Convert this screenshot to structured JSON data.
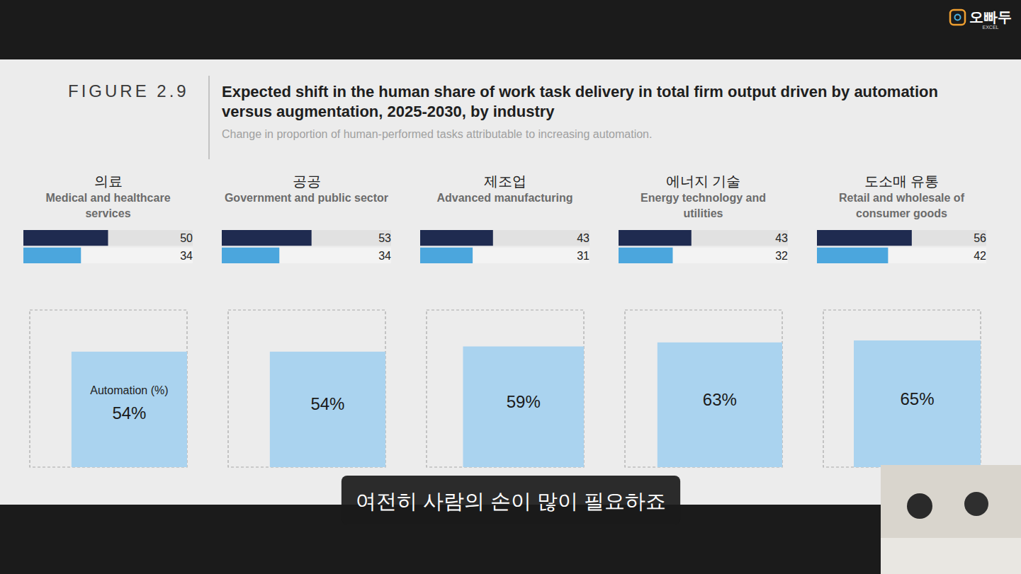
{
  "figure": {
    "label": "FIGURE 2.9",
    "title": "Expected shift in the human share of work task delivery in total firm output driven by automation versus augmentation, 2025-2030, by industry",
    "subtitle": "Change in proportion of human-performed tasks attributable to increasing automation."
  },
  "caption": "여전히 사람의 손이 많이 필요하죠",
  "logo": {
    "text": "오빠두",
    "subtext": "EXCEL"
  },
  "chart_data": [
    {
      "type": "bar",
      "orientation": "horizontal",
      "title": "의료",
      "subtitle": "Medical and healthcare services",
      "categories": [
        null,
        null
      ],
      "values": [
        50,
        34
      ],
      "colors": [
        "#1f2b50",
        "#4ba6dd"
      ],
      "xlim": [
        0,
        100
      ],
      "tick_labels": false,
      "data_labels": true,
      "automation_label": "Automation (%)",
      "automation_value": 54,
      "automation_value_label": "54%",
      "automation_lim": [
        0,
        100
      ]
    },
    {
      "type": "bar",
      "orientation": "horizontal",
      "title": "공공",
      "subtitle": "Government and public sector",
      "categories": [
        null,
        null
      ],
      "values": [
        53,
        34
      ],
      "colors": [
        "#1f2b50",
        "#4ba6dd"
      ],
      "xlim": [
        0,
        100
      ],
      "tick_labels": false,
      "data_labels": true,
      "automation_value": 54,
      "automation_value_label": "54%",
      "automation_lim": [
        0,
        100
      ]
    },
    {
      "type": "bar",
      "orientation": "horizontal",
      "title": "제조업",
      "subtitle": "Advanced manufacturing",
      "categories": [
        null,
        null
      ],
      "values": [
        43,
        31
      ],
      "colors": [
        "#1f2b50",
        "#4ba6dd"
      ],
      "xlim": [
        0,
        100
      ],
      "tick_labels": false,
      "data_labels": true,
      "automation_value": 59,
      "automation_value_label": "59%",
      "automation_lim": [
        0,
        100
      ]
    },
    {
      "type": "bar",
      "orientation": "horizontal",
      "title": "에너지 기술",
      "subtitle": "Energy technology and utilities",
      "categories": [
        null,
        null
      ],
      "values": [
        43,
        32
      ],
      "colors": [
        "#1f2b50",
        "#4ba6dd"
      ],
      "xlim": [
        0,
        100
      ],
      "tick_labels": false,
      "data_labels": true,
      "automation_value": 63,
      "automation_value_label": "63%",
      "automation_lim": [
        0,
        100
      ]
    },
    {
      "type": "bar",
      "orientation": "horizontal",
      "title": "도소매 유통",
      "subtitle": "Retail and wholesale of consumer goods",
      "categories": [
        null,
        null
      ],
      "values": [
        56,
        42
      ],
      "colors": [
        "#1f2b50",
        "#4ba6dd"
      ],
      "xlim": [
        0,
        100
      ],
      "tick_labels": false,
      "data_labels": true,
      "automation_value": 65,
      "automation_value_label": "65%",
      "automation_lim": [
        0,
        100
      ]
    }
  ]
}
